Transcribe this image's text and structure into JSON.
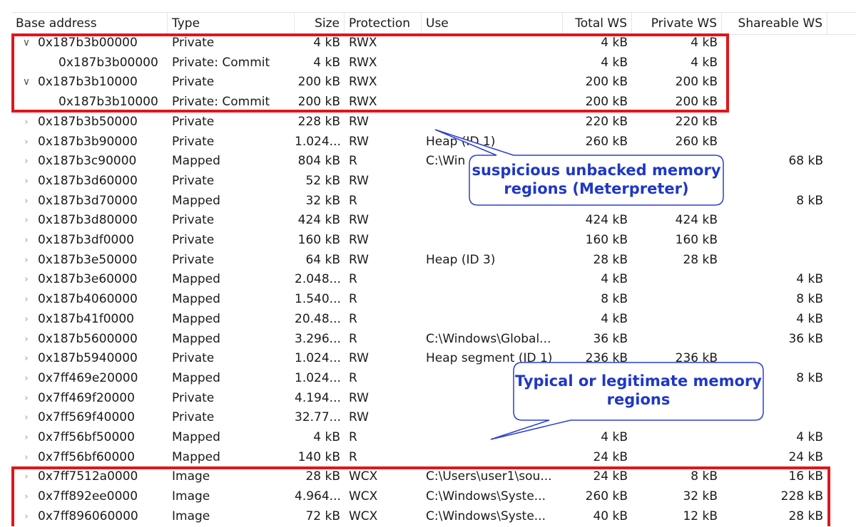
{
  "columns": [
    {
      "key": "base",
      "label": "Base address"
    },
    {
      "key": "type",
      "label": "Type"
    },
    {
      "key": "size",
      "label": "Size"
    },
    {
      "key": "prot",
      "label": "Protection"
    },
    {
      "key": "use",
      "label": "Use"
    },
    {
      "key": "tws",
      "label": "Total WS"
    },
    {
      "key": "pws",
      "label": "Private WS"
    },
    {
      "key": "sws",
      "label": "Shareable WS"
    }
  ],
  "rows": [
    {
      "chevron": "down",
      "indent": 0,
      "base": "0x187b3b00000",
      "type": "Private",
      "size": "4 kB",
      "prot": "RWX",
      "use": "",
      "tws": "4 kB",
      "pws": "4 kB",
      "sws": ""
    },
    {
      "chevron": "none",
      "indent": 1,
      "base": "0x187b3b00000",
      "type": "Private: Commit",
      "size": "4 kB",
      "prot": "RWX",
      "use": "",
      "tws": "4 kB",
      "pws": "4 kB",
      "sws": ""
    },
    {
      "chevron": "down",
      "indent": 0,
      "base": "0x187b3b10000",
      "type": "Private",
      "size": "200 kB",
      "prot": "RWX",
      "use": "",
      "tws": "200 kB",
      "pws": "200 kB",
      "sws": ""
    },
    {
      "chevron": "none",
      "indent": 1,
      "base": "0x187b3b10000",
      "type": "Private: Commit",
      "size": "200 kB",
      "prot": "RWX",
      "use": "",
      "tws": "200 kB",
      "pws": "200 kB",
      "sws": ""
    },
    {
      "chevron": "right",
      "indent": 0,
      "base": "0x187b3b50000",
      "type": "Private",
      "size": "228 kB",
      "prot": "RW",
      "use": "",
      "tws": "220 kB",
      "pws": "220 kB",
      "sws": ""
    },
    {
      "chevron": "right",
      "indent": 0,
      "base": "0x187b3b90000",
      "type": "Private",
      "size": "1.024...",
      "prot": "RW",
      "use": "Heap (ID 1)",
      "tws": "260 kB",
      "pws": "260 kB",
      "sws": ""
    },
    {
      "chevron": "right",
      "indent": 0,
      "base": "0x187b3c90000",
      "type": "Mapped",
      "size": "804 kB",
      "prot": "R",
      "use": "C:\\Win",
      "tws": "",
      "pws": "",
      "sws": "68 kB"
    },
    {
      "chevron": "right",
      "indent": 0,
      "base": "0x187b3d60000",
      "type": "Private",
      "size": "52 kB",
      "prot": "RW",
      "use": "",
      "tws": "",
      "pws": "",
      "sws": ""
    },
    {
      "chevron": "right",
      "indent": 0,
      "base": "0x187b3d70000",
      "type": "Mapped",
      "size": "32 kB",
      "prot": "R",
      "use": "",
      "tws": "",
      "pws": "",
      "sws": "8 kB"
    },
    {
      "chevron": "right",
      "indent": 0,
      "base": "0x187b3d80000",
      "type": "Private",
      "size": "424 kB",
      "prot": "RW",
      "use": "",
      "tws": "424 kB",
      "pws": "424 kB",
      "sws": ""
    },
    {
      "chevron": "right",
      "indent": 0,
      "base": "0x187b3df0000",
      "type": "Private",
      "size": "160 kB",
      "prot": "RW",
      "use": "",
      "tws": "160 kB",
      "pws": "160 kB",
      "sws": ""
    },
    {
      "chevron": "right",
      "indent": 0,
      "base": "0x187b3e50000",
      "type": "Private",
      "size": "64 kB",
      "prot": "RW",
      "use": "Heap (ID 3)",
      "tws": "28 kB",
      "pws": "28 kB",
      "sws": ""
    },
    {
      "chevron": "right",
      "indent": 0,
      "base": "0x187b3e60000",
      "type": "Mapped",
      "size": "2.048...",
      "prot": "R",
      "use": "",
      "tws": "4 kB",
      "pws": "",
      "sws": "4 kB"
    },
    {
      "chevron": "right",
      "indent": 0,
      "base": "0x187b4060000",
      "type": "Mapped",
      "size": "1.540...",
      "prot": "R",
      "use": "",
      "tws": "8 kB",
      "pws": "",
      "sws": "8 kB"
    },
    {
      "chevron": "right",
      "indent": 0,
      "base": "0x187b41f0000",
      "type": "Mapped",
      "size": "20.48...",
      "prot": "R",
      "use": "",
      "tws": "4 kB",
      "pws": "",
      "sws": "4 kB"
    },
    {
      "chevron": "right",
      "indent": 0,
      "base": "0x187b5600000",
      "type": "Mapped",
      "size": "3.296...",
      "prot": "R",
      "use": "C:\\Windows\\Global...",
      "tws": "36 kB",
      "pws": "",
      "sws": "36 kB"
    },
    {
      "chevron": "right",
      "indent": 0,
      "base": "0x187b5940000",
      "type": "Private",
      "size": "1.024...",
      "prot": "RW",
      "use": "Heap segment (ID 1)",
      "tws": "236 kB",
      "pws": "236 kB",
      "sws": ""
    },
    {
      "chevron": "right",
      "indent": 0,
      "base": "0x7ff469e20000",
      "type": "Mapped",
      "size": "1.024...",
      "prot": "R",
      "use": "",
      "tws": "",
      "pws": "",
      "sws": "8 kB"
    },
    {
      "chevron": "right",
      "indent": 0,
      "base": "0x7ff469f20000",
      "type": "Private",
      "size": "4.194...",
      "prot": "RW",
      "use": "",
      "tws": "",
      "pws": "",
      "sws": ""
    },
    {
      "chevron": "right",
      "indent": 0,
      "base": "0x7ff569f40000",
      "type": "Private",
      "size": "32.77...",
      "prot": "RW",
      "use": "",
      "tws": "",
      "pws": "",
      "sws": ""
    },
    {
      "chevron": "right",
      "indent": 0,
      "base": "0x7ff56bf50000",
      "type": "Mapped",
      "size": "4 kB",
      "prot": "R",
      "use": "",
      "tws": "4 kB",
      "pws": "",
      "sws": "4 kB"
    },
    {
      "chevron": "right",
      "indent": 0,
      "base": "0x7ff56bf60000",
      "type": "Mapped",
      "size": "140 kB",
      "prot": "R",
      "use": "",
      "tws": "24 kB",
      "pws": "",
      "sws": "24 kB"
    },
    {
      "chevron": "right",
      "indent": 0,
      "base": "0x7ff7512a0000",
      "type": "Image",
      "size": "28 kB",
      "prot": "WCX",
      "use": "C:\\Users\\user1\\sou...",
      "tws": "24 kB",
      "pws": "8 kB",
      "sws": "16 kB"
    },
    {
      "chevron": "right",
      "indent": 0,
      "base": "0x7ff892ee0000",
      "type": "Image",
      "size": "4.964...",
      "prot": "WCX",
      "use": "C:\\Windows\\Syste...",
      "tws": "260 kB",
      "pws": "32 kB",
      "sws": "228 kB"
    },
    {
      "chevron": "right",
      "indent": 0,
      "base": "0x7ff896060000",
      "type": "Image",
      "size": "72 kB",
      "prot": "WCX",
      "use": "C:\\Windows\\Syste...",
      "tws": "40 kB",
      "pws": "12 kB",
      "sws": "28 kB"
    }
  ],
  "annotations": {
    "suspicious": {
      "line1": "suspicious unbacked memory",
      "line2": "regions (Meterpreter)"
    },
    "legit": {
      "line1": "Typical or legitimate memory",
      "line2": "regions"
    }
  },
  "colors": {
    "highlight": "#e0161a",
    "callout_text": "#1f37c6",
    "callout_border": "#2b3fd0"
  }
}
